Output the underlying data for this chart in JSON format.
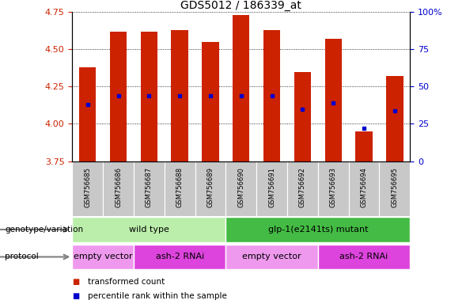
{
  "title": "GDS5012 / 186339_at",
  "samples": [
    "GSM756685",
    "GSM756686",
    "GSM756687",
    "GSM756688",
    "GSM756689",
    "GSM756690",
    "GSM756691",
    "GSM756692",
    "GSM756693",
    "GSM756694",
    "GSM756695"
  ],
  "bar_values": [
    4.38,
    4.62,
    4.62,
    4.63,
    4.55,
    4.73,
    4.63,
    4.35,
    4.57,
    3.95,
    4.32
  ],
  "blue_dot_values": [
    4.13,
    4.19,
    4.19,
    4.19,
    4.19,
    4.19,
    4.19,
    4.1,
    4.14,
    3.97,
    4.09
  ],
  "ylim_left": [
    3.75,
    4.75
  ],
  "ylim_right": [
    0,
    100
  ],
  "yticks_left": [
    3.75,
    4.0,
    4.25,
    4.5,
    4.75
  ],
  "yticks_right": [
    0,
    25,
    50,
    75,
    100
  ],
  "bar_bottom": 3.75,
  "bar_color": "#cc2200",
  "dot_color": "#0000cc",
  "bg_color": "#ffffff",
  "genotype_groups": [
    {
      "label": "wild type",
      "start": 0,
      "end": 4,
      "color": "#bbeeaa"
    },
    {
      "label": "glp-1(e2141ts) mutant",
      "start": 5,
      "end": 10,
      "color": "#44bb44"
    }
  ],
  "protocol_groups": [
    {
      "label": "empty vector",
      "start": 0,
      "end": 1,
      "color": "#ee99ee"
    },
    {
      "label": "ash-2 RNAi",
      "start": 2,
      "end": 4,
      "color": "#dd44dd"
    },
    {
      "label": "empty vector",
      "start": 5,
      "end": 7,
      "color": "#ee99ee"
    },
    {
      "label": "ash-2 RNAi",
      "start": 8,
      "end": 10,
      "color": "#dd44dd"
    }
  ],
  "left_axis_color": "#cc2200",
  "right_axis_color": "#0000cc",
  "sample_area_color": "#c8c8c8",
  "label_row1": "genotype/variation",
  "label_row2": "protocol",
  "legend_red": "transformed count",
  "legend_blue": "percentile rank within the sample"
}
